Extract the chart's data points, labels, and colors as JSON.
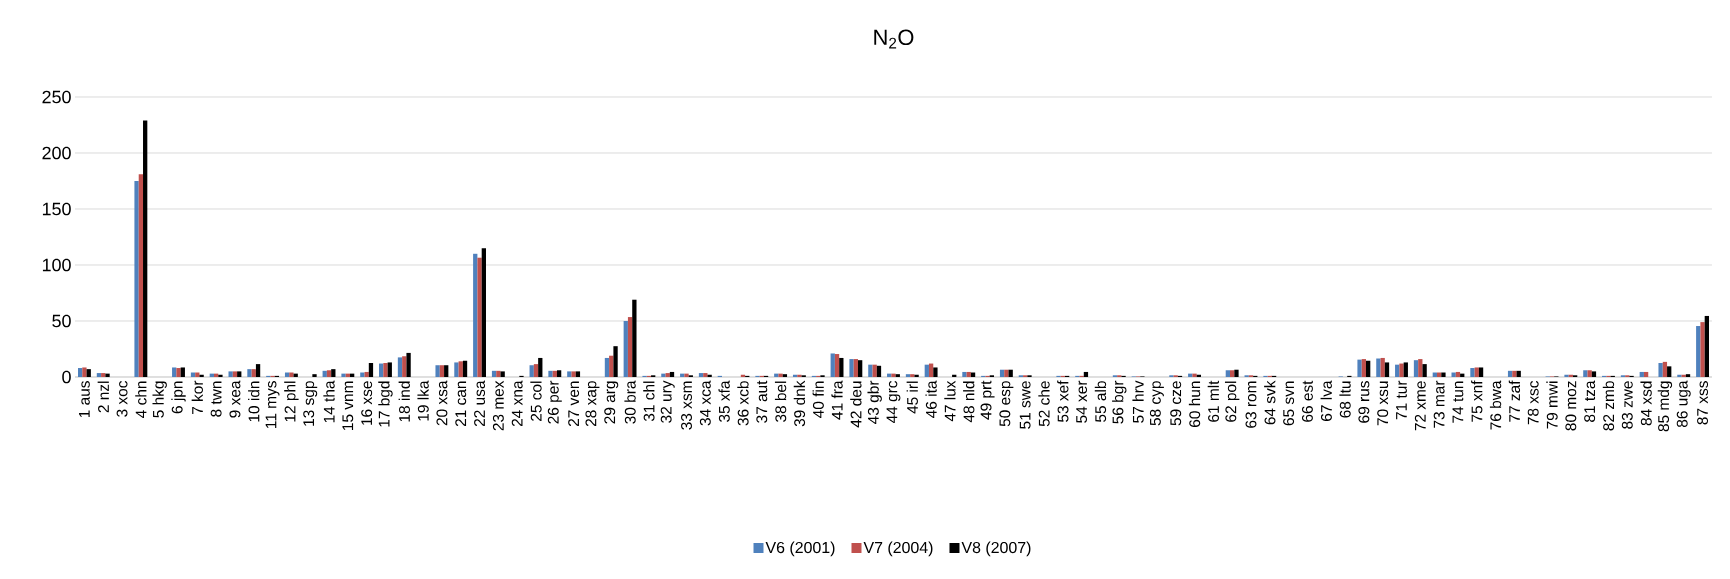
{
  "chart_data": {
    "type": "bar",
    "title": "N$_{2}$O",
    "categories": [
      "1 aus",
      "2 nzl",
      "3 xoc",
      "4 chn",
      "5 hkg",
      "6 jpn",
      "7 kor",
      "8 twn",
      "9 xea",
      "10 idn",
      "11 mys",
      "12 phl",
      "13 sgp",
      "14 tha",
      "15 vnm",
      "16 xse",
      "17 bgd",
      "18 ind",
      "19 lka",
      "20 xsa",
      "21 can",
      "22 usa",
      "23 mex",
      "24 xna",
      "25 col",
      "26 per",
      "27 ven",
      "28 xap",
      "29 arg",
      "30 bra",
      "31 chl",
      "32 ury",
      "33 xsm",
      "34 xca",
      "35 xfa",
      "36 xcb",
      "37 aut",
      "38 bel",
      "39 dnk",
      "40 fin",
      "41 fra",
      "42 deu",
      "43 gbr",
      "44 grc",
      "45 irl",
      "46 ita",
      "47 lux",
      "48 nld",
      "49 prt",
      "50 esp",
      "51 swe",
      "52 che",
      "53 xef",
      "54 xer",
      "55 alb",
      "56 bgr",
      "57 hrv",
      "58 cyp",
      "59 cze",
      "60 hun",
      "61 mlt",
      "62 pol",
      "63 rom",
      "64 svk",
      "65 svn",
      "66 est",
      "67 lva",
      "68 ltu",
      "69 rus",
      "70 xsu",
      "71 tur",
      "72 xme",
      "73 mar",
      "74 tun",
      "75 xnf",
      "76 bwa",
      "77 zaf",
      "78 xsc",
      "79 mwi",
      "80 moz",
      "81 tza",
      "82 zmb",
      "83 zwe",
      "84 xsd",
      "85 mdg",
      "86 uga",
      "87 xss"
    ],
    "series": [
      {
        "name": "V6 (2001)",
        "color": "#4f81bd",
        "values": [
          8,
          3.5,
          0,
          175,
          0,
          8.5,
          4,
          3,
          5,
          7,
          1,
          4,
          0,
          5.5,
          3,
          4,
          12,
          17.5,
          0,
          10.5,
          13,
          110,
          5.5,
          0,
          10.5,
          5.5,
          5,
          0,
          17,
          50,
          1,
          3,
          3,
          3.5,
          1,
          0,
          1,
          3,
          2,
          1,
          21,
          16,
          11,
          3,
          2.5,
          11,
          0,
          4.5,
          1,
          6.5,
          1.5,
          null,
          1,
          1,
          0,
          1.5,
          0.5,
          0,
          1.5,
          3,
          0,
          6,
          1.5,
          1,
          0,
          0,
          0,
          0.5,
          15.5,
          16.5,
          11,
          15,
          4,
          4,
          8,
          0,
          5.5,
          null,
          0.5,
          2,
          6,
          1,
          1.5,
          4.5,
          12.5,
          2,
          45.5
        ]
      },
      {
        "name": "V7 (2004)",
        "color": "#c0504d",
        "values": [
          8.5,
          3.5,
          0,
          181,
          0,
          8,
          4,
          3,
          5,
          7,
          1,
          4,
          0,
          6,
          3,
          4.5,
          12.5,
          18.5,
          0,
          10.5,
          14,
          106.5,
          5.5,
          0,
          11.5,
          5.5,
          5,
          0,
          19,
          53.5,
          1,
          3.5,
          3,
          3.5,
          0,
          2,
          1,
          3,
          2,
          1,
          20.5,
          16,
          11,
          3,
          2.5,
          12,
          0,
          4.5,
          1,
          6.5,
          1.5,
          null,
          1,
          1,
          0,
          1.5,
          0.5,
          0,
          1.5,
          3,
          0,
          6,
          1.5,
          1,
          0,
          0,
          0,
          0,
          16,
          17,
          12,
          16,
          4,
          4.5,
          8.5,
          0,
          5.5,
          null,
          0.5,
          2,
          6,
          1,
          1.5,
          4.5,
          13.5,
          2,
          49
        ]
      },
      {
        "name": "V8 (2007)",
        "color": "#000000",
        "values": [
          7,
          3,
          0,
          229,
          0,
          8.5,
          2,
          2,
          5,
          11.5,
          1,
          3,
          2.5,
          7,
          3,
          12.5,
          13,
          21.5,
          0,
          10.5,
          14.5,
          115,
          5,
          1,
          17,
          6,
          5,
          0,
          27.5,
          69,
          1.5,
          4.5,
          1.5,
          2,
          0,
          1,
          1,
          2.5,
          1.5,
          1.5,
          17,
          15,
          10,
          2.5,
          2,
          8.5,
          2,
          4,
          1.5,
          6.5,
          1.5,
          0,
          1,
          4.5,
          0,
          1,
          0.5,
          0,
          1,
          2,
          0,
          6.5,
          1,
          1,
          0,
          0,
          0,
          1,
          14.5,
          13,
          13,
          11.5,
          4,
          3,
          8.5,
          0,
          5.5,
          0,
          0.5,
          1.5,
          5,
          1,
          1,
          0,
          9.5,
          2.5,
          54.5
        ]
      }
    ],
    "ylim": [
      0,
      250
    ],
    "yticks": [
      0,
      50,
      100,
      150,
      200,
      250
    ],
    "grid": "y",
    "legend": "bottom"
  }
}
